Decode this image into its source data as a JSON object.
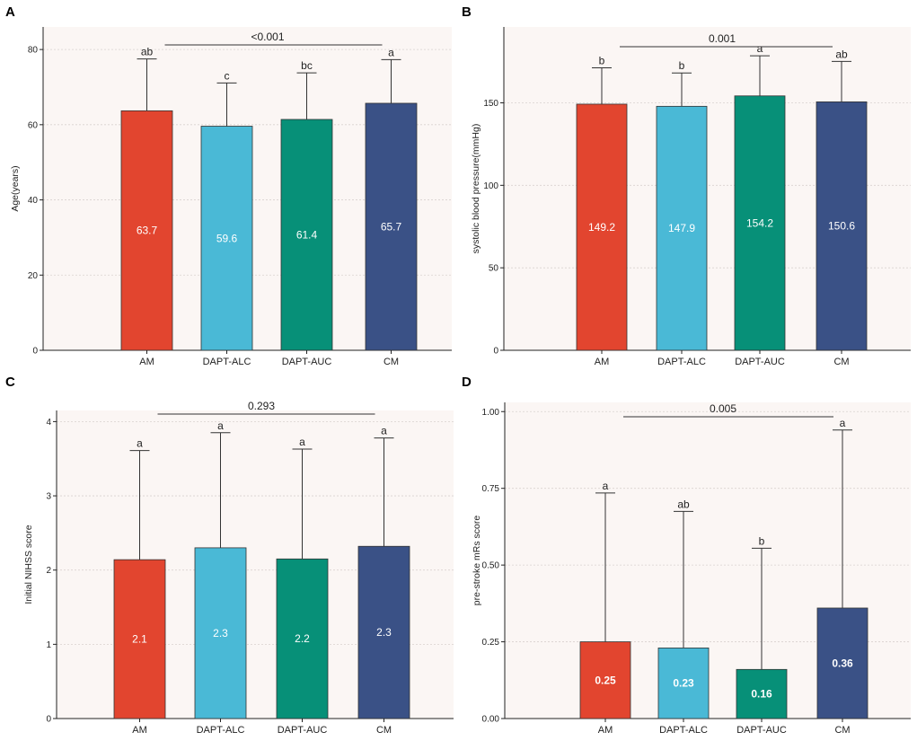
{
  "colors": {
    "AM": "#e2452f",
    "DAPT-ALC": "#4ab9d6",
    "DAPT-AUC": "#079078",
    "CM": "#3a5186"
  },
  "chart_data": [
    {
      "panel": "A",
      "type": "bar",
      "categories": [
        "AM",
        "DAPT-ALC",
        "DAPT-AUC",
        "CM"
      ],
      "values": [
        63.7,
        59.6,
        61.4,
        65.7
      ],
      "value_labels": [
        "63.7",
        "59.6",
        "61.4",
        "65.7"
      ],
      "errors": [
        13.8,
        11.5,
        12.4,
        11.6
      ],
      "letters": [
        "ab",
        "c",
        "bc",
        "a"
      ],
      "pvalue": "<0.001",
      "ylabel": "Age(years)",
      "ylim": [
        0,
        86
      ],
      "yticks": [
        0,
        20,
        40,
        60,
        80
      ],
      "ytick_labels": [
        "0",
        "20",
        "40",
        "60",
        "80"
      ],
      "grid": true
    },
    {
      "panel": "B",
      "type": "bar",
      "categories": [
        "AM",
        "DAPT-ALC",
        "DAPT-AUC",
        "CM"
      ],
      "values": [
        149.2,
        147.9,
        154.2,
        150.6
      ],
      "value_labels": [
        "149.2",
        "147.9",
        "154.2",
        "150.6"
      ],
      "errors": [
        22.0,
        20.2,
        24.3,
        24.5
      ],
      "letters": [
        "b",
        "b",
        "a",
        "ab"
      ],
      "pvalue": "0.001",
      "ylabel": "systolic blood pressure(mmHg)",
      "ylim": [
        0,
        196
      ],
      "yticks": [
        0,
        50,
        100,
        150
      ],
      "ytick_labels": [
        "0",
        "50",
        "100",
        "150"
      ],
      "grid": true
    },
    {
      "panel": "C",
      "type": "bar",
      "categories": [
        "AM",
        "DAPT-ALC",
        "DAPT-AUC",
        "CM"
      ],
      "values": [
        2.14,
        2.3,
        2.15,
        2.32
      ],
      "value_labels": [
        "2.1",
        "2.3",
        "2.2",
        "2.3"
      ],
      "errors": [
        1.47,
        1.55,
        1.48,
        1.46
      ],
      "letters": [
        "a",
        "a",
        "a",
        "a"
      ],
      "pvalue": "0.293",
      "ylabel": "Initial NIHSS score",
      "ylim": [
        0,
        4.15
      ],
      "yticks": [
        0,
        1,
        2,
        3,
        4
      ],
      "ytick_labels": [
        "0",
        "1",
        "2",
        "3",
        "4"
      ],
      "grid": true
    },
    {
      "panel": "D",
      "type": "bar",
      "categories": [
        "AM",
        "DAPT-ALC",
        "DAPT-AUC",
        "CM"
      ],
      "values": [
        0.25,
        0.23,
        0.16,
        0.36
      ],
      "value_labels": [
        "0.25",
        "0.23",
        "0.16",
        "0.36"
      ],
      "errors": [
        0.485,
        0.445,
        0.395,
        0.58
      ],
      "letters": [
        "a",
        "ab",
        "b",
        "a"
      ],
      "pvalue": "0.005",
      "ylabel": "pre-stroke mRs score",
      "ylim": [
        0,
        1.03
      ],
      "yticks": [
        0,
        0.25,
        0.5,
        0.75,
        1.0
      ],
      "ytick_labels": [
        "0.00",
        "0.25",
        "0.50",
        "0.75",
        "1.00"
      ],
      "grid": true
    }
  ]
}
